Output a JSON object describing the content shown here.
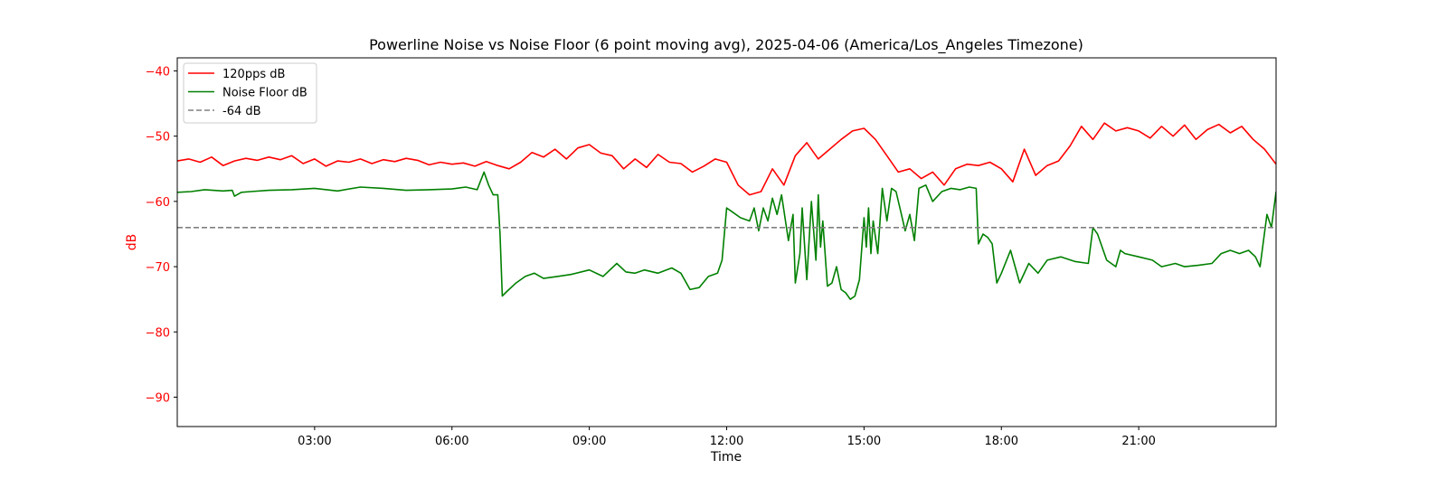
{
  "chart_data": {
    "type": "line",
    "title": "Powerline Noise vs Noise Floor (6 point moving avg), 2025-04-06 (America/Los_Angeles Timezone)",
    "xlabel": "Time",
    "ylabel": "dB",
    "x_unit": "hours (time of day)",
    "xlim": [
      0.0,
      24.0
    ],
    "ylim": [
      -94.5,
      -38.0
    ],
    "x_ticks": [
      3,
      6,
      9,
      12,
      15,
      18,
      21
    ],
    "x_tick_labels": [
      "03:00",
      "06:00",
      "09:00",
      "12:00",
      "15:00",
      "18:00",
      "21:00"
    ],
    "y_ticks": [
      -40,
      -50,
      -60,
      -70,
      -80,
      -90
    ],
    "y_tick_labels": [
      "−40",
      "−50",
      "−60",
      "−70",
      "−80",
      "−90"
    ],
    "y_axis_color": "#ff0000",
    "grid": false,
    "legend_position": "top-left",
    "series": [
      {
        "name": "120pps dB",
        "color": "#ff0000",
        "style": "solid",
        "x": [
          0.0,
          0.25,
          0.5,
          0.75,
          1.0,
          1.25,
          1.5,
          1.75,
          2.0,
          2.25,
          2.5,
          2.75,
          3.0,
          3.25,
          3.5,
          3.75,
          4.0,
          4.25,
          4.5,
          4.75,
          5.0,
          5.25,
          5.5,
          5.75,
          6.0,
          6.25,
          6.5,
          6.75,
          7.0,
          7.25,
          7.5,
          7.75,
          8.0,
          8.25,
          8.5,
          8.75,
          9.0,
          9.25,
          9.5,
          9.75,
          10.0,
          10.25,
          10.5,
          10.75,
          11.0,
          11.25,
          11.5,
          11.75,
          12.0,
          12.25,
          12.5,
          12.75,
          13.0,
          13.25,
          13.5,
          13.75,
          14.0,
          14.25,
          14.5,
          14.75,
          15.0,
          15.25,
          15.5,
          15.75,
          16.0,
          16.25,
          16.5,
          16.75,
          17.0,
          17.25,
          17.5,
          17.75,
          18.0,
          18.25,
          18.5,
          18.75,
          19.0,
          19.25,
          19.5,
          19.75,
          20.0,
          20.25,
          20.5,
          20.75,
          21.0,
          21.25,
          21.5,
          21.75,
          22.0,
          22.25,
          22.5,
          22.75,
          23.0,
          23.25,
          23.5,
          23.75,
          24.0
        ],
        "y": [
          -53.8,
          -53.5,
          -54.0,
          -53.2,
          -54.5,
          -53.8,
          -53.4,
          -53.7,
          -53.2,
          -53.6,
          -53.0,
          -54.2,
          -53.5,
          -54.6,
          -53.8,
          -54.0,
          -53.5,
          -54.2,
          -53.6,
          -53.9,
          -53.4,
          -53.7,
          -54.4,
          -54.0,
          -54.3,
          -54.1,
          -54.6,
          -53.9,
          -54.5,
          -55.0,
          -54.0,
          -52.5,
          -53.2,
          -52.0,
          -53.5,
          -51.8,
          -51.3,
          -52.6,
          -53.0,
          -55.0,
          -53.5,
          -54.8,
          -52.8,
          -54.0,
          -54.2,
          -55.5,
          -54.6,
          -53.5,
          -54.0,
          -57.5,
          -59.0,
          -58.5,
          -55.0,
          -57.5,
          -53.0,
          -51.0,
          -53.5,
          -52.0,
          -50.5,
          -49.2,
          -48.8,
          -50.5,
          -53.0,
          -55.5,
          -55.0,
          -56.5,
          -55.5,
          -57.5,
          -55.0,
          -54.3,
          -54.5,
          -54.0,
          -55.0,
          -57.0,
          -52.0,
          -56.0,
          -54.5,
          -53.8,
          -51.5,
          -48.5,
          -50.5,
          -48.0,
          -49.2,
          -48.7,
          -49.2,
          -50.3,
          -48.5,
          -50.0,
          -48.3,
          -50.5,
          -49.0,
          -48.2,
          -49.5,
          -48.5,
          -50.5,
          -52.0,
          -54.3
        ]
      },
      {
        "name": "Noise Floor dB",
        "color": "#008000",
        "style": "solid",
        "x": [
          0.0,
          0.3,
          0.6,
          1.0,
          1.2,
          1.25,
          1.4,
          1.6,
          2.0,
          2.5,
          3.0,
          3.5,
          4.0,
          4.5,
          5.0,
          5.5,
          6.0,
          6.3,
          6.55,
          6.7,
          6.8,
          6.9,
          7.0,
          7.05,
          7.1,
          7.2,
          7.4,
          7.6,
          7.8,
          8.0,
          8.3,
          8.6,
          9.0,
          9.3,
          9.6,
          9.8,
          10.0,
          10.2,
          10.5,
          10.8,
          11.0,
          11.2,
          11.4,
          11.6,
          11.8,
          11.9,
          12.0,
          12.1,
          12.3,
          12.5,
          12.6,
          12.7,
          12.8,
          12.9,
          13.0,
          13.1,
          13.2,
          13.35,
          13.45,
          13.5,
          13.6,
          13.65,
          13.75,
          13.85,
          13.95,
          14.0,
          14.05,
          14.1,
          14.2,
          14.3,
          14.4,
          14.5,
          14.6,
          14.7,
          14.8,
          14.9,
          15.0,
          15.05,
          15.1,
          15.15,
          15.2,
          15.3,
          15.4,
          15.5,
          15.6,
          15.7,
          15.8,
          15.9,
          16.0,
          16.1,
          16.2,
          16.35,
          16.5,
          16.7,
          16.9,
          17.1,
          17.3,
          17.45,
          17.5,
          17.6,
          17.7,
          17.8,
          17.9,
          18.0,
          18.2,
          18.4,
          18.6,
          18.8,
          19.0,
          19.3,
          19.6,
          19.9,
          20.0,
          20.1,
          20.3,
          20.5,
          20.6,
          20.7,
          21.0,
          21.3,
          21.5,
          21.8,
          22.0,
          22.3,
          22.6,
          22.8,
          23.0,
          23.2,
          23.4,
          23.55,
          23.65,
          23.8,
          23.9,
          24.0
        ],
        "y": [
          -58.6,
          -58.5,
          -58.2,
          -58.4,
          -58.3,
          -59.2,
          -58.6,
          -58.5,
          -58.3,
          -58.2,
          -58.0,
          -58.4,
          -57.8,
          -58.0,
          -58.3,
          -58.2,
          -58.1,
          -57.8,
          -58.2,
          -55.5,
          -57.5,
          -59.0,
          -59.0,
          -65.0,
          -74.5,
          -73.8,
          -72.5,
          -71.5,
          -71.0,
          -71.8,
          -71.5,
          -71.2,
          -70.5,
          -71.5,
          -69.5,
          -70.8,
          -71.0,
          -70.5,
          -71.0,
          -70.2,
          -71.0,
          -73.5,
          -73.2,
          -71.5,
          -71.0,
          -69.0,
          -61.0,
          -61.5,
          -62.5,
          -63.0,
          -61.0,
          -64.5,
          -61.0,
          -63.0,
          -59.5,
          -62.0,
          -59.0,
          -66.0,
          -62.0,
          -72.5,
          -68.0,
          -61.0,
          -72.0,
          -60.0,
          -69.0,
          -59.0,
          -67.0,
          -63.0,
          -73.0,
          -72.5,
          -70.0,
          -73.5,
          -74.0,
          -75.0,
          -74.5,
          -72.0,
          -62.5,
          -67.0,
          -61.0,
          -68.0,
          -63.0,
          -68.0,
          -58.0,
          -63.0,
          -58.0,
          -58.5,
          -61.5,
          -64.5,
          -62.0,
          -66.0,
          -58.0,
          -57.5,
          -60.0,
          -58.5,
          -58.0,
          -58.2,
          -57.8,
          -58.0,
          -66.5,
          -65.0,
          -65.5,
          -66.5,
          -72.5,
          -71.0,
          -67.5,
          -72.5,
          -69.5,
          -71.0,
          -69.0,
          -68.5,
          -69.2,
          -69.5,
          -64.0,
          -65.0,
          -69.0,
          -70.0,
          -67.5,
          -68.0,
          -68.5,
          -69.0,
          -70.0,
          -69.5,
          -70.0,
          -69.8,
          -69.5,
          -68.0,
          -67.5,
          -68.0,
          -67.5,
          -68.5,
          -70.0,
          -62.0,
          -64.0,
          -58.5
        ]
      },
      {
        "name": "-64 dB",
        "color": "#808080",
        "style": "dashed",
        "x": [
          0.0,
          24.0
        ],
        "y": [
          -64,
          -64
        ]
      }
    ]
  }
}
